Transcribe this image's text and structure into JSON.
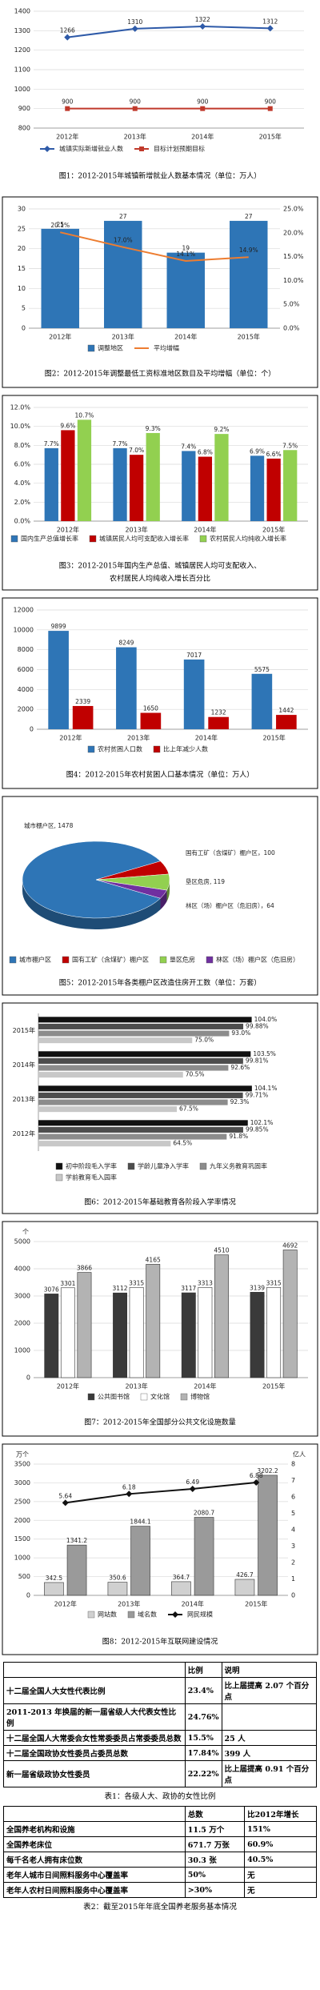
{
  "chart_data": [
    {
      "type": "line",
      "categories": [
        "2012年",
        "2013年",
        "2014年",
        "2015年"
      ],
      "series": [
        {
          "name": "城镇实际新增就业人数",
          "color": "#2e5aa8",
          "marker": "diamond",
          "values": [
            1266,
            1310,
            1322,
            1312
          ]
        },
        {
          "name": "目标计划预期目标",
          "color": "#c0392b",
          "marker": "square",
          "values": [
            900,
            900,
            900,
            900
          ]
        }
      ],
      "ylim": [
        800,
        1400
      ],
      "yticks": [
        800,
        900,
        1000,
        1100,
        1200,
        1300,
        1400
      ],
      "grid": true,
      "legend": "bottom",
      "caption": [
        "图1：2012-2015年城镇新增就业人数基本情况（单位：万人）"
      ]
    },
    {
      "type": "bar",
      "categories": [
        "2012年",
        "2013年",
        "2014年",
        "2015年"
      ],
      "series": [
        {
          "name": "调整地区",
          "color": "#2e75b6",
          "values": [
            25,
            27,
            19,
            27
          ]
        },
        {
          "name": "平均增幅",
          "type": "line",
          "axis": "y2",
          "color": "#ed7d31",
          "marker": "none",
          "values": [
            20.1,
            17.0,
            14.1,
            14.9
          ],
          "value_labels": [
            "20.1%",
            "17.0%",
            "14.1%",
            "14.9%"
          ]
        }
      ],
      "ylim": [
        0,
        30
      ],
      "yticks": [
        0,
        5,
        10,
        15,
        20,
        25,
        30
      ],
      "y2lim": [
        0,
        25
      ],
      "y2ticks": [
        {
          "value": 0,
          "label": "0.0%"
        },
        {
          "value": 5,
          "label": "5.0%"
        },
        {
          "value": 10,
          "label": "10.0%"
        },
        {
          "value": 15,
          "label": "15.0%"
        },
        {
          "value": 20,
          "label": "20.0%"
        },
        {
          "value": 25,
          "label": "25.0%"
        }
      ],
      "grid": true,
      "legend": "bottom",
      "caption": [
        "图2：2012-2015年调整最低工资标准地区数目及平均增幅（单位：个）"
      ]
    },
    {
      "type": "bar",
      "categories": [
        "2012年",
        "2013年",
        "2014年",
        "2015年"
      ],
      "series": [
        {
          "name": "国内生产总值增长率",
          "color": "#2e75b6",
          "values": [
            7.7,
            7.7,
            7.4,
            6.9
          ],
          "value_labels": [
            "7.7%",
            "7.7%",
            "7.4%",
            "6.9%"
          ]
        },
        {
          "name": "城镇居民人均可支配收入增长率",
          "color": "#c00000",
          "values": [
            9.6,
            7.0,
            6.8,
            6.6
          ],
          "value_labels": [
            "9.6%",
            "7.0%",
            "6.8%",
            "6.6%"
          ]
        },
        {
          "name": "农村居民人均纯收入增长率",
          "color": "#92d050",
          "values": [
            10.7,
            9.3,
            9.2,
            7.5
          ],
          "value_labels": [
            "10.7%",
            "9.3%",
            "9.2%",
            "7.5%"
          ]
        }
      ],
      "ylim": [
        0,
        12
      ],
      "yticks": [
        {
          "value": 0,
          "label": "0.0%"
        },
        {
          "value": 2,
          "label": "2.0%"
        },
        {
          "value": 4,
          "label": "4.0%"
        },
        {
          "value": 6,
          "label": "6.0%"
        },
        {
          "value": 8,
          "label": "8.0%"
        },
        {
          "value": 10,
          "label": "10.0%"
        },
        {
          "value": 12,
          "label": "12.0%"
        }
      ],
      "grid": true,
      "legend": "bottom",
      "caption": [
        "图3：2012-2015年国内生产总值、城镇居民人均可支配收入、",
        "农村居民人均纯收入增长百分比"
      ]
    },
    {
      "type": "bar",
      "categories": [
        "2012年",
        "2013年",
        "2014年",
        "2015年"
      ],
      "series": [
        {
          "name": "农村贫困人口数",
          "color": "#2e75b6",
          "values": [
            9899,
            8249,
            7017,
            5575
          ]
        },
        {
          "name": "比上年减少人数",
          "color": "#c00000",
          "values": [
            2339,
            1650,
            1232,
            1442
          ]
        }
      ],
      "ylim": [
        0,
        12000
      ],
      "yticks": [
        0,
        2000,
        4000,
        6000,
        8000,
        10000,
        12000
      ],
      "grid": true,
      "legend": "bottom",
      "caption": [
        "图4：2012-2015年农村贫困人口基本情况（单位：万人）"
      ]
    },
    {
      "type": "pie",
      "categories": [
        "城市棚户区",
        "国有工矿（含煤矿）棚户区",
        "垦区危房",
        "林区（场）棚户区（危旧房）"
      ],
      "values": [
        1478,
        100,
        119,
        64
      ],
      "value_labels": [
        "城市棚户区, 1478",
        "国有工矿（含煤矿）棚户区，100",
        "垦区危房, 119",
        "林区（场）棚户区（危旧房），64"
      ],
      "colors": [
        "#2e75b6",
        "#c00000",
        "#92d050",
        "#7030a0"
      ],
      "legend": "bottom",
      "caption": [
        "图5：2012-2015年各类棚户区改造住房开工数（单位：万套）"
      ]
    },
    {
      "type": "hbar",
      "categories": [
        "2012年",
        "2013年",
        "2014年",
        "2015年"
      ],
      "series": [
        {
          "name": "初中阶段毛入学率",
          "color": "#111111",
          "values": [
            102.1,
            104.1,
            103.5,
            104.0
          ],
          "value_labels": [
            "102.1%",
            "104.1%",
            "103.5%",
            "104.0%"
          ]
        },
        {
          "name": "学龄儿童净入学率",
          "color": "#4d4d4d",
          "values": [
            99.85,
            99.71,
            99.81,
            99.88
          ],
          "value_labels": [
            "99.85%",
            "99.71%",
            "99.81%",
            "99.88%"
          ]
        },
        {
          "name": "九年义务教育巩固率",
          "color": "#8c8c8c",
          "values": [
            91.8,
            92.3,
            92.6,
            93.0
          ],
          "value_labels": [
            "91.8%",
            "92.3%",
            "92.6%",
            "93.0%"
          ]
        },
        {
          "name": "学前教育毛入园率",
          "color": "#c8c8c8",
          "values": [
            64.5,
            67.5,
            70.5,
            75.0
          ],
          "value_labels": [
            "64.5%",
            "67.5%",
            "70.5%",
            "75.0%"
          ]
        }
      ],
      "xlim": [
        0,
        110
      ],
      "legend": "bottom",
      "caption": [
        "图6：2012-2015年基础教育各阶段入学率情况"
      ]
    },
    {
      "type": "bar",
      "categories": [
        "2012年",
        "2013年",
        "2014年",
        "2015年"
      ],
      "y_label": "个",
      "series": [
        {
          "name": "公共图书馆",
          "color": "#3a3a3a",
          "values": [
            3076,
            3112,
            3117,
            3139
          ]
        },
        {
          "name": "文化馆",
          "color": "#ffffff",
          "values": [
            3301,
            3315,
            3313,
            3315
          ]
        },
        {
          "name": "博物馆",
          "color": "#b3b3b3",
          "values": [
            3866,
            4165,
            4510,
            4692
          ]
        }
      ],
      "ylim": [
        0,
        5000
      ],
      "yticks": [
        0,
        1000,
        2000,
        3000,
        4000,
        5000
      ],
      "grid": true,
      "legend": "bottom",
      "caption": [
        "图7：2012-2015年全国部分公共文化设施数量"
      ]
    },
    {
      "type": "bar",
      "categories": [
        "2012年",
        "2013年",
        "2014年",
        "2015年"
      ],
      "y_label": "万个",
      "y2_label": "亿人",
      "series": [
        {
          "name": "网站数",
          "color": "#d0d0d0",
          "values": [
            342.5,
            350.6,
            364.7,
            426.7
          ]
        },
        {
          "name": "域名数",
          "color": "#9a9a9a",
          "values": [
            1341.2,
            1844.1,
            2080.7,
            3202.2
          ]
        },
        {
          "name": "网民规模",
          "type": "line",
          "axis": "y2",
          "color": "#111111",
          "marker": "diamond",
          "values": [
            5.64,
            6.18,
            6.49,
            6.88
          ]
        }
      ],
      "ylim": [
        0,
        3500
      ],
      "yticks": [
        0,
        500,
        1000,
        1500,
        2000,
        2500,
        3000,
        3500
      ],
      "y2lim": [
        0,
        8
      ],
      "y2ticks": [
        0,
        1,
        2,
        3,
        4,
        5,
        6,
        7,
        8
      ],
      "grid": true,
      "legend": "bottom",
      "caption": [
        "图8：2012-2015年互联网建设情况"
      ]
    }
  ],
  "tables": [
    {
      "header": [
        "比例",
        "说明"
      ],
      "rows": [
        [
          "十二届全国人大女性代表比例",
          "23.4%",
          "比上届提高 2.07 个百分点"
        ],
        [
          "2011-2013 年换届的新一届省级人大代表女性比例",
          "24.76%"
        ],
        [
          "十二届全国人大常委会女性常委委员占常委委员总数",
          "15.5%",
          "25 人"
        ],
        [
          "十二届全国政协女性委员占委员总数",
          "17.84%",
          "399 人"
        ],
        [
          "新一届省级政协女性委员",
          "22.22%",
          "比上届提高 0.91 个百分点"
        ]
      ],
      "caption": "表1：各级人大、政协的女性比例"
    },
    {
      "header": [
        "总数",
        "比2012年增长"
      ],
      "rows": [
        [
          "全国养老机构和设施",
          "11.5 万个",
          "151%"
        ],
        [
          "全国养老床位",
          "671.7 万张",
          "60.9%"
        ],
        [
          "每千名老人拥有床位数",
          "30.3 张",
          "40.5%"
        ],
        [
          "老年人城市日间照料服务中心覆盖率",
          "50%",
          "无"
        ],
        [
          "老年人农村日间照料服务中心覆盖率",
          ">30%",
          "无"
        ]
      ],
      "caption": "表2：截至2015年年底全国养老服务基本情况"
    }
  ]
}
